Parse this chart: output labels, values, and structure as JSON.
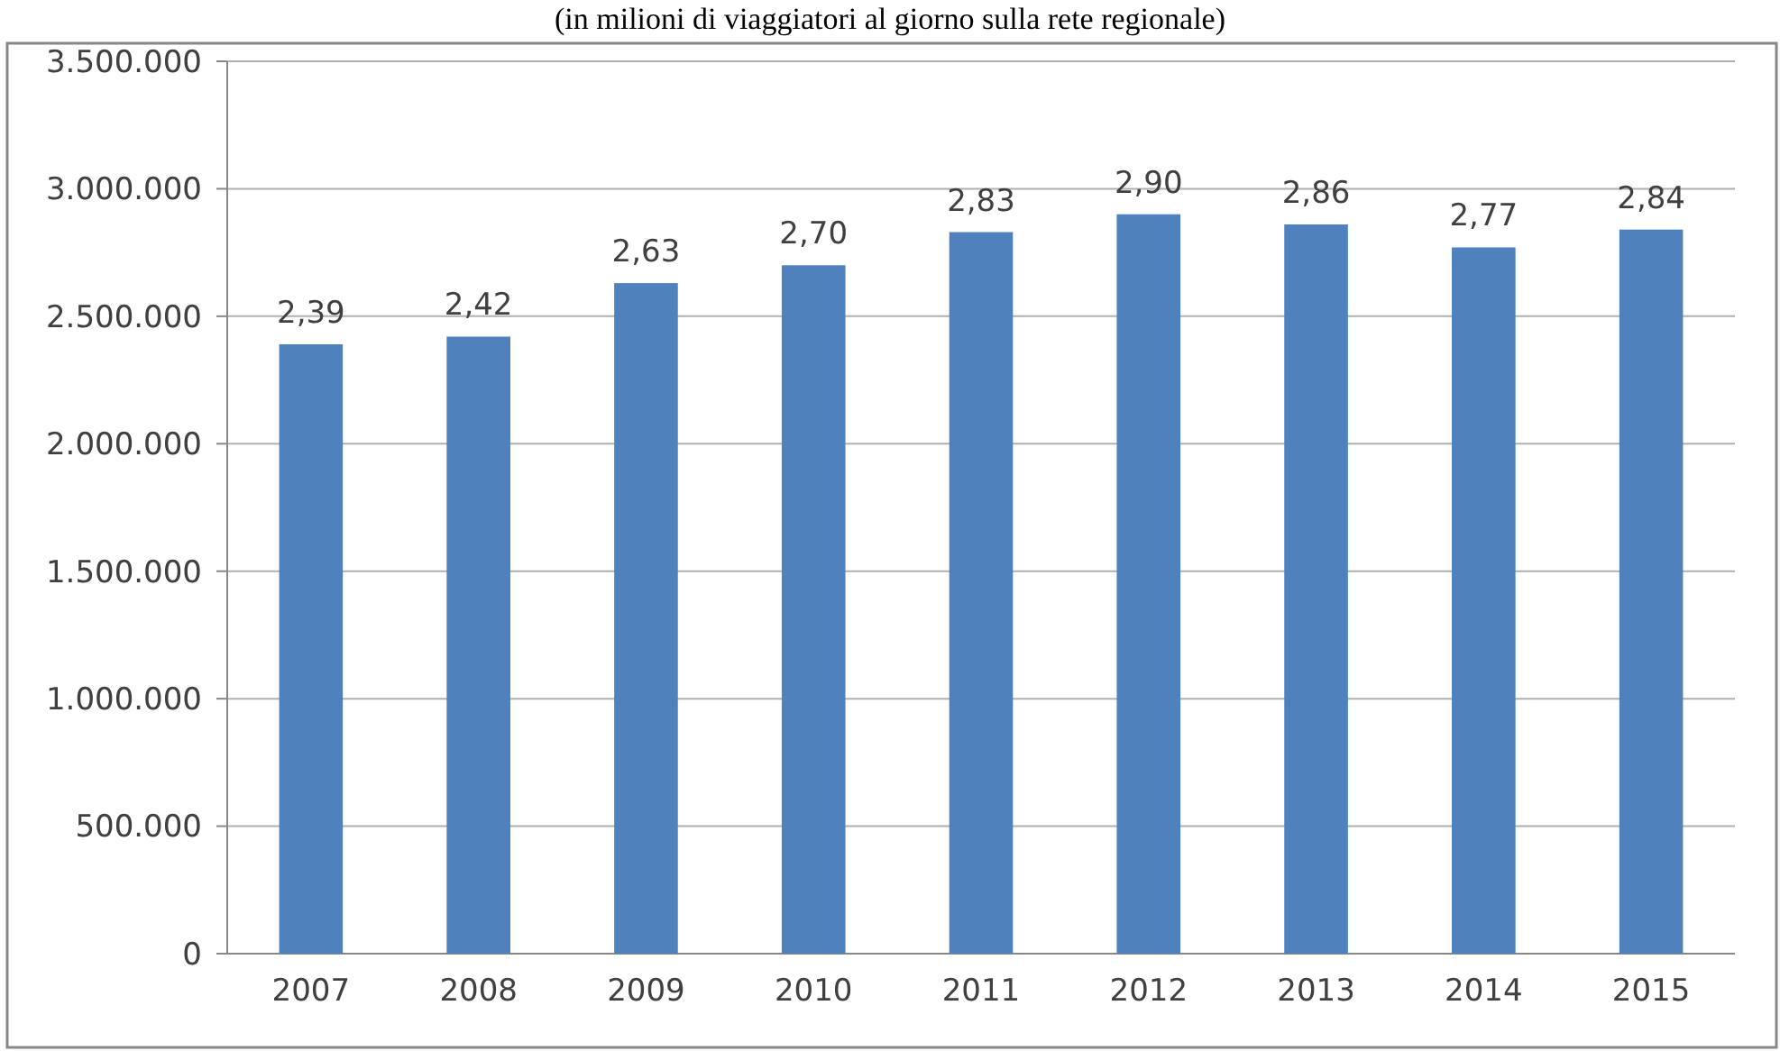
{
  "chart_data": {
    "type": "bar",
    "title": "(in milioni di viaggiatori al giorno sulla rete regionale)",
    "categories": [
      "2007",
      "2008",
      "2009",
      "2010",
      "2011",
      "2012",
      "2013",
      "2014",
      "2015"
    ],
    "values": [
      2390000,
      2420000,
      2630000,
      2700000,
      2830000,
      2900000,
      2860000,
      2770000,
      2840000
    ],
    "annotations": [
      {
        "text": "2,39",
        "x": "2007",
        "y": 2390000
      },
      {
        "text": "2,42",
        "x": "2008",
        "y": 2420000
      },
      {
        "text": "2,63",
        "x": "2009",
        "y": 2630000
      },
      {
        "text": "2,70",
        "x": "2010",
        "y": 2700000
      },
      {
        "text": "2,83",
        "x": "2011",
        "y": 2830000
      },
      {
        "text": "2,90",
        "x": "2012",
        "y": 2900000
      },
      {
        "text": "2,86",
        "x": "2013",
        "y": 2860000
      },
      {
        "text": "2,77",
        "x": "2014",
        "y": 2770000
      },
      {
        "text": "2,84",
        "x": "2015",
        "y": 2840000
      }
    ],
    "color": "#4f81bd",
    "ylim": [
      0,
      3500000
    ],
    "yticks": [
      0,
      {
        "value": 500000,
        "label": "500.000"
      },
      {
        "value": 1000000,
        "label": "1.000.000"
      },
      {
        "value": 1500000,
        "label": "1.500.000"
      },
      {
        "value": 2000000,
        "label": "2.000.000"
      },
      {
        "value": 2500000,
        "label": "2.500.000"
      },
      {
        "value": 3000000,
        "label": "3.000.000"
      },
      {
        "value": 3500000,
        "label": "3.500.000"
      }
    ],
    "grid": "y"
  }
}
